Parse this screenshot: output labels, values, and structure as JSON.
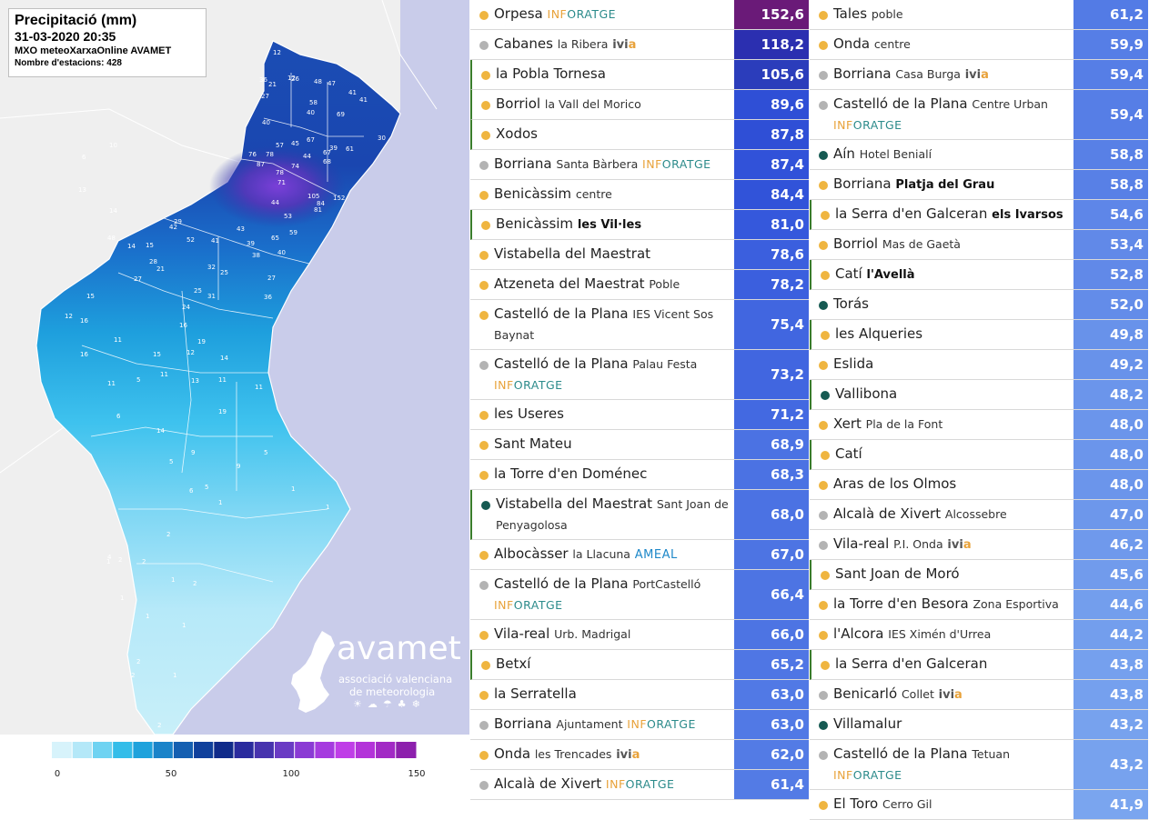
{
  "map": {
    "title": "Precipitació (mm)",
    "datetime": "31-03-2020 20:35",
    "network": "MXO meteoXarxaOnline AVAMET",
    "station_count": "Nombre d'estacions: 428",
    "logo": {
      "name": "avamet",
      "line1": "associació valenciana",
      "line2": "de meteorologia",
      "weather_icons": "☀☁☂♣❄"
    },
    "legend": {
      "labels": [
        "0",
        "50",
        "100",
        "150"
      ],
      "colors": [
        "#d7f3fb",
        "#b4e8f8",
        "#6fd3f2",
        "#34bde9",
        "#1ea2dc",
        "#1a83c9",
        "#155fb1",
        "#10409c",
        "#102b8a",
        "#2a2b9e",
        "#4733ae",
        "#6a3bc4",
        "#8a3ad4",
        "#a53bdf",
        "#bf3ee7",
        "#b333d9",
        "#a22ac5",
        "#8d20ad"
      ]
    },
    "values": [
      {
        "v": "12",
        "x": 300,
        "y": 60
      },
      {
        "v": "12",
        "x": 316,
        "y": 88
      },
      {
        "v": "26",
        "x": 320,
        "y": 89
      },
      {
        "v": "36",
        "x": 285,
        "y": 90
      },
      {
        "v": "27",
        "x": 287,
        "y": 108
      },
      {
        "v": "21",
        "x": 295,
        "y": 95
      },
      {
        "v": "47",
        "x": 360,
        "y": 94
      },
      {
        "v": "48",
        "x": 345,
        "y": 92
      },
      {
        "v": "41",
        "x": 383,
        "y": 104
      },
      {
        "v": "41",
        "x": 395,
        "y": 112
      },
      {
        "v": "40",
        "x": 288,
        "y": 137
      },
      {
        "v": "58",
        "x": 340,
        "y": 115
      },
      {
        "v": "40",
        "x": 337,
        "y": 126
      },
      {
        "v": "69",
        "x": 370,
        "y": 128
      },
      {
        "v": "57",
        "x": 303,
        "y": 162
      },
      {
        "v": "45",
        "x": 320,
        "y": 160
      },
      {
        "v": "67",
        "x": 337,
        "y": 156
      },
      {
        "v": "67",
        "x": 355,
        "y": 170
      },
      {
        "v": "61",
        "x": 380,
        "y": 166
      },
      {
        "v": "30",
        "x": 415,
        "y": 154
      },
      {
        "v": "76",
        "x": 273,
        "y": 172
      },
      {
        "v": "78",
        "x": 292,
        "y": 172
      },
      {
        "v": "87",
        "x": 282,
        "y": 183
      },
      {
        "v": "78",
        "x": 303,
        "y": 192
      },
      {
        "v": "74",
        "x": 320,
        "y": 185
      },
      {
        "v": "44",
        "x": 333,
        "y": 174
      },
      {
        "v": "68",
        "x": 355,
        "y": 180
      },
      {
        "v": "39",
        "x": 362,
        "y": 165
      },
      {
        "v": "71",
        "x": 305,
        "y": 203
      },
      {
        "v": "105",
        "x": 338,
        "y": 218
      },
      {
        "v": "152",
        "x": 366,
        "y": 220
      },
      {
        "v": "44",
        "x": 298,
        "y": 225
      },
      {
        "v": "53",
        "x": 312,
        "y": 240
      },
      {
        "v": "81",
        "x": 345,
        "y": 233
      },
      {
        "v": "84",
        "x": 348,
        "y": 226
      },
      {
        "v": "29",
        "x": 191,
        "y": 246
      },
      {
        "v": "42",
        "x": 186,
        "y": 252
      },
      {
        "v": "52",
        "x": 205,
        "y": 266
      },
      {
        "v": "41",
        "x": 232,
        "y": 267
      },
      {
        "v": "43",
        "x": 260,
        "y": 254
      },
      {
        "v": "65",
        "x": 298,
        "y": 264
      },
      {
        "v": "59",
        "x": 318,
        "y": 258
      },
      {
        "v": "48",
        "x": 118,
        "y": 264
      },
      {
        "v": "14",
        "x": 140,
        "y": 273
      },
      {
        "v": "15",
        "x": 160,
        "y": 272
      },
      {
        "v": "40",
        "x": 305,
        "y": 280
      },
      {
        "v": "38",
        "x": 277,
        "y": 283
      },
      {
        "v": "39",
        "x": 271,
        "y": 270
      },
      {
        "v": "28",
        "x": 164,
        "y": 290
      },
      {
        "v": "21",
        "x": 172,
        "y": 298
      },
      {
        "v": "32",
        "x": 228,
        "y": 296
      },
      {
        "v": "25",
        "x": 242,
        "y": 302
      },
      {
        "v": "27",
        "x": 294,
        "y": 308
      },
      {
        "v": "27",
        "x": 147,
        "y": 309
      },
      {
        "v": "25",
        "x": 213,
        "y": 322
      },
      {
        "v": "31",
        "x": 228,
        "y": 328
      },
      {
        "v": "15",
        "x": 95,
        "y": 328
      },
      {
        "v": "24",
        "x": 200,
        "y": 340
      },
      {
        "v": "36",
        "x": 290,
        "y": 329
      },
      {
        "v": "12",
        "x": 71,
        "y": 350
      },
      {
        "v": "16",
        "x": 88,
        "y": 355
      },
      {
        "v": "11",
        "x": 125,
        "y": 376
      },
      {
        "v": "16",
        "x": 88,
        "y": 392
      },
      {
        "v": "11",
        "x": 118,
        "y": 424
      },
      {
        "v": "16",
        "x": 197,
        "y": 360
      },
      {
        "v": "19",
        "x": 217,
        "y": 378
      },
      {
        "v": "12",
        "x": 205,
        "y": 390
      },
      {
        "v": "14",
        "x": 242,
        "y": 396
      },
      {
        "v": "15",
        "x": 168,
        "y": 392
      },
      {
        "v": "11",
        "x": 176,
        "y": 414
      },
      {
        "v": "13",
        "x": 210,
        "y": 421
      },
      {
        "v": "11",
        "x": 240,
        "y": 420
      },
      {
        "v": "11",
        "x": 280,
        "y": 428
      },
      {
        "v": "19",
        "x": 240,
        "y": 455
      },
      {
        "v": "14",
        "x": 172,
        "y": 476
      },
      {
        "v": "5",
        "x": 150,
        "y": 420
      },
      {
        "v": "6",
        "x": 128,
        "y": 460
      },
      {
        "v": "9",
        "x": 210,
        "y": 500
      },
      {
        "v": "5",
        "x": 186,
        "y": 510
      },
      {
        "v": "9",
        "x": 260,
        "y": 515
      },
      {
        "v": "5",
        "x": 225,
        "y": 538
      },
      {
        "v": "6",
        "x": 208,
        "y": 542
      },
      {
        "v": "1",
        "x": 240,
        "y": 555
      },
      {
        "v": "5",
        "x": 290,
        "y": 500
      },
      {
        "v": "1",
        "x": 320,
        "y": 540
      },
      {
        "v": "1",
        "x": 358,
        "y": 560
      },
      {
        "v": "2",
        "x": 183,
        "y": 590
      },
      {
        "v": "2",
        "x": 156,
        "y": 620
      },
      {
        "v": "1",
        "x": 188,
        "y": 640
      },
      {
        "v": "1",
        "x": 132,
        "y": 660
      },
      {
        "v": "2",
        "x": 212,
        "y": 644
      },
      {
        "v": "1",
        "x": 160,
        "y": 680
      },
      {
        "v": "2",
        "x": 150,
        "y": 730
      },
      {
        "v": "2",
        "x": 144,
        "y": 745
      },
      {
        "v": "1",
        "x": 190,
        "y": 745
      },
      {
        "v": "1",
        "x": 200,
        "y": 690
      },
      {
        "v": "2",
        "x": 173,
        "y": 800
      },
      {
        "v": "2",
        "x": 130,
        "y": 618
      },
      {
        "v": "1",
        "x": 117,
        "y": 620
      },
      {
        "v": "4",
        "x": 118,
        "y": 615
      },
      {
        "v": "10",
        "x": 120,
        "y": 162
      },
      {
        "v": "6",
        "x": 90,
        "y": 175
      },
      {
        "v": "13",
        "x": 86,
        "y": 211
      },
      {
        "v": "14",
        "x": 120,
        "y": 234
      }
    ]
  },
  "table": {
    "left": [
      {
        "dot": "o",
        "bl": false,
        "name": "Orpesa",
        "inf": true,
        "value": "152,6",
        "color": "#6a1a78",
        "h": 33
      },
      {
        "dot": "g",
        "bl": false,
        "name": "Cabanes",
        "extra": "la Ribera",
        "ivia": true,
        "value": "118,2",
        "color": "#2b2fb0",
        "h": 33
      },
      {
        "dot": "o",
        "bl": true,
        "name": "la Pobla Tornesa",
        "value": "105,6",
        "color": "#2b3dbb",
        "h": 33
      },
      {
        "dot": "o",
        "bl": true,
        "name": "Borriol",
        "extra": "la Vall del Morico",
        "value": "89,6",
        "color": "#2f4fd6",
        "h": 33
      },
      {
        "dot": "o",
        "bl": true,
        "name": "Xodos",
        "value": "87,8",
        "color": "#2f4fd6",
        "h": 33
      },
      {
        "dot": "g",
        "bl": false,
        "name": "Borriana",
        "extra": "Santa Bàrbera",
        "inf": true,
        "value": "87,4",
        "color": "#3152d9",
        "h": 33
      },
      {
        "dot": "o",
        "bl": false,
        "name": "Benicàssim",
        "extra": "centre",
        "value": "84,4",
        "color": "#3153d9",
        "h": 33
      },
      {
        "dot": "o",
        "bl": true,
        "name": "Benicàssim",
        "extra": "les Vil·les",
        "bold": true,
        "value": "81,0",
        "color": "#3558dc",
        "h": 33
      },
      {
        "dot": "o",
        "bl": false,
        "name": "Vistabella del Maestrat",
        "value": "78,6",
        "color": "#3b5fde",
        "h": 33
      },
      {
        "dot": "o",
        "bl": false,
        "name": "Atzeneta del Maestrat",
        "extra": "Poble",
        "value": "78,2",
        "color": "#3b5fde",
        "h": 33
      },
      {
        "dot": "o",
        "bl": false,
        "name": "Castelló de la Plana",
        "extra": "IES Vicent Sos Baynat",
        "value": "75,4",
        "color": "#4166e0",
        "h": 55
      },
      {
        "dot": "g",
        "bl": false,
        "name": "Castelló de la Plana",
        "extra": "Palau Festa",
        "inf": true,
        "value": "73,2",
        "color": "#4166e0",
        "h": 55
      },
      {
        "dot": "o",
        "bl": false,
        "name": "les Useres",
        "value": "71,2",
        "color": "#4369e1",
        "h": 33
      },
      {
        "dot": "o",
        "bl": false,
        "name": "Sant Mateu",
        "value": "68,9",
        "color": "#4b72e3",
        "h": 33
      },
      {
        "dot": "o",
        "bl": false,
        "name": "la Torre d'en Doménec",
        "value": "68,3",
        "color": "#4b72e3",
        "h": 33
      },
      {
        "dot": "t",
        "bl": true,
        "name": "Vistabella del Maestrat",
        "extra": "Sant Joan de Penyagolosa",
        "value": "68,0",
        "color": "#4b72e3",
        "h": 55
      },
      {
        "dot": "o",
        "bl": false,
        "name": "Albocàsser",
        "extra": "la Llacuna",
        "ameal": true,
        "value": "67,0",
        "color": "#4d74e3",
        "h": 33
      },
      {
        "dot": "g",
        "bl": false,
        "name": "Castelló de la Plana",
        "extra": "PortCastelló",
        "inf": true,
        "value": "66,4",
        "color": "#4d74e3",
        "h": 55
      },
      {
        "dot": "o",
        "bl": false,
        "name": "Vila-real",
        "extra": "Urb. Madrigal",
        "value": "66,0",
        "color": "#4d74e3",
        "h": 33
      },
      {
        "dot": "o",
        "bl": true,
        "name": "Betxí",
        "value": "65,2",
        "color": "#4f76e4",
        "h": 33
      },
      {
        "dot": "o",
        "bl": false,
        "name": "la Serratella",
        "value": "63,0",
        "color": "#5179e5",
        "h": 33
      },
      {
        "dot": "g",
        "bl": false,
        "name": "Borriana",
        "extra": "Ajuntament",
        "inf": true,
        "value": "63,0",
        "color": "#5179e5",
        "h": 33
      },
      {
        "dot": "o",
        "bl": false,
        "name": "Onda",
        "extra": "les Trencades",
        "ivia": true,
        "value": "62,0",
        "color": "#537be5",
        "h": 33
      },
      {
        "dot": "g",
        "bl": false,
        "name": "Alcalà de Xivert",
        "inf": true,
        "value": "61,4",
        "color": "#537be5",
        "h": 33
      }
    ],
    "right": [
      {
        "dot": "o",
        "bl": false,
        "name": "Tales",
        "extra": "poble",
        "value": "61,2",
        "color": "#537be5",
        "h": 33
      },
      {
        "dot": "o",
        "bl": false,
        "name": "Onda",
        "extra": "centre",
        "value": "59,9",
        "color": "#567ee6",
        "h": 33
      },
      {
        "dot": "g",
        "bl": false,
        "name": "Borriana",
        "extra": "Casa Burga",
        "ivia": true,
        "value": "59,4",
        "color": "#567ee6",
        "h": 33
      },
      {
        "dot": "g",
        "bl": false,
        "name": "Castelló de la Plana",
        "extra": "Centre Urban",
        "inf": true,
        "value": "59,4",
        "color": "#567ee6",
        "h": 55
      },
      {
        "dot": "t",
        "bl": false,
        "name": "Aín",
        "extra": "Hotel Benialí",
        "value": "58,8",
        "color": "#5880e6",
        "h": 33
      },
      {
        "dot": "o",
        "bl": false,
        "name": "Borriana",
        "extra": "Platja del Grau",
        "bold": true,
        "value": "58,8",
        "color": "#5880e6",
        "h": 33
      },
      {
        "dot": "o",
        "bl": true,
        "name": "la Serra d'en Galceran",
        "extra": "els Ivarsos",
        "bold": true,
        "value": "54,6",
        "color": "#5e86e8",
        "h": 33
      },
      {
        "dot": "o",
        "bl": false,
        "name": "Borriol",
        "extra": "Mas de Gaetà",
        "value": "53,4",
        "color": "#6189e8",
        "h": 33
      },
      {
        "dot": "o",
        "bl": true,
        "name": "Catí",
        "extra": "l'Avellà",
        "bold": true,
        "value": "52,8",
        "color": "#6189e8",
        "h": 33
      },
      {
        "dot": "t",
        "bl": false,
        "name": "Torás",
        "value": "52,0",
        "color": "#638ce9",
        "h": 33
      },
      {
        "dot": "o",
        "bl": true,
        "name": "les Alqueries",
        "value": "49,8",
        "color": "#6892ea",
        "h": 33
      },
      {
        "dot": "o",
        "bl": false,
        "name": "Eslida",
        "value": "49,2",
        "color": "#6892ea",
        "h": 33
      },
      {
        "dot": "t",
        "bl": true,
        "name": "Vallibona",
        "value": "48,2",
        "color": "#6b95eb",
        "h": 33
      },
      {
        "dot": "o",
        "bl": false,
        "name": "Xert",
        "extra": "Pla de la Font",
        "value": "48,0",
        "color": "#6b95eb",
        "h": 33
      },
      {
        "dot": "o",
        "bl": true,
        "name": "Catí",
        "value": "48,0",
        "color": "#6b95eb",
        "h": 33
      },
      {
        "dot": "o",
        "bl": false,
        "name": "Aras de los Olmos",
        "value": "48,0",
        "color": "#6b95eb",
        "h": 33
      },
      {
        "dot": "g",
        "bl": false,
        "name": "Alcalà de Xivert",
        "extra": "Alcossebre",
        "inf": true,
        "value": "47,0",
        "color": "#6d97eb",
        "h": 33
      },
      {
        "dot": "g",
        "bl": false,
        "name": "Vila-real",
        "extra": "P.I. Onda",
        "ivia": true,
        "value": "46,2",
        "color": "#6f99ec",
        "h": 33
      },
      {
        "dot": "o",
        "bl": true,
        "name": "Sant Joan de Moró",
        "value": "45,6",
        "color": "#719bec",
        "h": 33
      },
      {
        "dot": "o",
        "bl": false,
        "name": "la Torre d'en Besora",
        "extra": "Zona Esportiva",
        "value": "44,6",
        "color": "#739eed",
        "h": 33
      },
      {
        "dot": "o",
        "bl": false,
        "name": "l'Alcora",
        "extra": "IES Ximén d'Urrea",
        "value": "44,2",
        "color": "#739eed",
        "h": 33
      },
      {
        "dot": "o",
        "bl": true,
        "name": "la Serra d'en Galceran",
        "value": "43,8",
        "color": "#75a0ee",
        "h": 33
      },
      {
        "dot": "g",
        "bl": false,
        "name": "Benicarló",
        "extra": "Collet",
        "ivia": true,
        "value": "43,8",
        "color": "#75a0ee",
        "h": 33
      },
      {
        "dot": "t",
        "bl": false,
        "name": "Villamalur",
        "value": "43,2",
        "color": "#77a2ee",
        "h": 33
      },
      {
        "dot": "g",
        "bl": false,
        "name": "Castelló de la Plana",
        "extra": "Tetuan",
        "inf": true,
        "value": "43,2",
        "color": "#77a2ee",
        "h": 55
      },
      {
        "dot": "o",
        "bl": false,
        "name": "El Toro",
        "extra": "Cerro Gil",
        "value": "41,9",
        "color": "#7aa5ef",
        "h": 33
      }
    ],
    "tags": {
      "inforatge_a": "INF",
      "inforatge_b": "ORATGE",
      "ivia_a": "ivi",
      "ivia_b": "a",
      "ameal": "AMEAL"
    }
  }
}
